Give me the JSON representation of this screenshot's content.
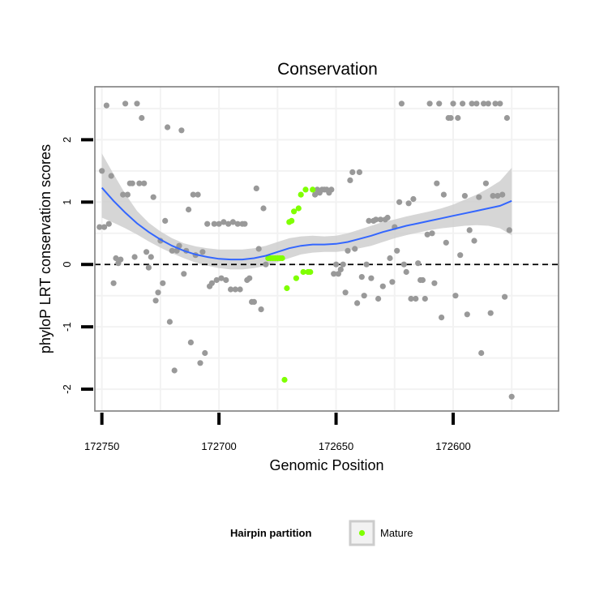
{
  "chart_data": {
    "type": "scatter",
    "title": "Conservation",
    "xlabel": "Genomic Position",
    "ylabel": "phyloP LRT conservation scores",
    "x_reversed": true,
    "xlim": [
      172555,
      172753
    ],
    "ylim": [
      -2.35,
      2.85
    ],
    "x_ticks": [
      172750,
      172700,
      172650,
      172600
    ],
    "y_ticks": [
      2,
      1,
      0,
      -1,
      -2
    ],
    "reference_line": {
      "y": 0,
      "style": "dashed",
      "color": "#000000"
    },
    "colors": {
      "other": "#999999",
      "mature": "#7FFF00",
      "smooth_line": "#3366FF",
      "ribbon": "#CCCCCC",
      "panel_border": "#7F7F7F",
      "grid": "#F2F2F2"
    },
    "legend": {
      "title": "Hairpin partition",
      "entries": [
        {
          "label": "Mature",
          "color": "#7FFF00"
        }
      ]
    },
    "series": [
      {
        "name": "Other",
        "points": [
          [
            172751,
            0.6
          ],
          [
            172750,
            1.5
          ],
          [
            172749,
            0.6
          ],
          [
            172748,
            2.55
          ],
          [
            172747,
            0.65
          ],
          [
            172746,
            1.42
          ],
          [
            172745,
            -0.3
          ],
          [
            172744,
            0.1
          ],
          [
            172743,
            0.02
          ],
          [
            172742,
            0.08
          ],
          [
            172741,
            1.12
          ],
          [
            172740,
            2.58
          ],
          [
            172739,
            1.12
          ],
          [
            172738,
            1.3
          ],
          [
            172737,
            1.3
          ],
          [
            172736,
            0.12
          ],
          [
            172735,
            2.58
          ],
          [
            172734,
            1.3
          ],
          [
            172733,
            2.35
          ],
          [
            172732,
            1.3
          ],
          [
            172731,
            0.2
          ],
          [
            172730,
            -0.05
          ],
          [
            172729,
            0.12
          ],
          [
            172728,
            1.08
          ],
          [
            172727,
            -0.58
          ],
          [
            172726,
            -0.45
          ],
          [
            172725,
            0.38
          ],
          [
            172724,
            -0.3
          ],
          [
            172723,
            0.7
          ],
          [
            172722,
            2.2
          ],
          [
            172721,
            -0.92
          ],
          [
            172720,
            0.22
          ],
          [
            172719,
            -1.7
          ],
          [
            172718,
            0.22
          ],
          [
            172717,
            0.3
          ],
          [
            172716,
            2.15
          ],
          [
            172715,
            -0.15
          ],
          [
            172714,
            0.22
          ],
          [
            172713,
            0.88
          ],
          [
            172712,
            -1.25
          ],
          [
            172711,
            1.12
          ],
          [
            172710,
            0.15
          ],
          [
            172709,
            1.12
          ],
          [
            172708,
            -1.58
          ],
          [
            172707,
            0.2
          ],
          [
            172706,
            -1.42
          ],
          [
            172705,
            0.65
          ],
          [
            172704,
            -0.35
          ],
          [
            172703,
            -0.3
          ],
          [
            172702,
            0.65
          ],
          [
            172701,
            -0.25
          ],
          [
            172700,
            0.65
          ],
          [
            172699,
            -0.22
          ],
          [
            172698,
            0.68
          ],
          [
            172697,
            -0.25
          ],
          [
            172696,
            0.65
          ],
          [
            172695,
            -0.4
          ],
          [
            172694,
            0.68
          ],
          [
            172693,
            -0.4
          ],
          [
            172692,
            0.65
          ],
          [
            172691,
            -0.4
          ],
          [
            172690,
            0.65
          ],
          [
            172689,
            0.65
          ],
          [
            172688,
            -0.25
          ],
          [
            172687,
            -0.22
          ],
          [
            172686,
            -0.6
          ],
          [
            172685,
            -0.6
          ],
          [
            172684,
            1.22
          ],
          [
            172683,
            0.25
          ],
          [
            172682,
            -0.72
          ],
          [
            172681,
            0.9
          ],
          [
            172680,
            0.0
          ],
          [
            172659,
            1.12
          ],
          [
            172658,
            1.2
          ],
          [
            172657,
            1.15
          ],
          [
            172656,
            1.2
          ],
          [
            172655,
            1.2
          ],
          [
            172654,
            1.2
          ],
          [
            172653,
            1.15
          ],
          [
            172652,
            1.2
          ],
          [
            172651,
            -0.15
          ],
          [
            172650,
            0.0
          ],
          [
            172649,
            -0.15
          ],
          [
            172648,
            -0.08
          ],
          [
            172647,
            0.0
          ],
          [
            172646,
            -0.45
          ],
          [
            172645,
            0.22
          ],
          [
            172644,
            1.35
          ],
          [
            172643,
            1.48
          ],
          [
            172642,
            0.25
          ],
          [
            172641,
            -0.62
          ],
          [
            172640,
            1.48
          ],
          [
            172639,
            -0.2
          ],
          [
            172638,
            -0.5
          ],
          [
            172637,
            0.0
          ],
          [
            172636,
            0.7
          ],
          [
            172635,
            -0.22
          ],
          [
            172634,
            0.7
          ],
          [
            172633,
            0.72
          ],
          [
            172632,
            -0.55
          ],
          [
            172631,
            0.72
          ],
          [
            172630,
            -0.35
          ],
          [
            172629,
            0.72
          ],
          [
            172628,
            0.75
          ],
          [
            172627,
            0.1
          ],
          [
            172626,
            -0.28
          ],
          [
            172625,
            0.6
          ],
          [
            172624,
            0.22
          ],
          [
            172623,
            1.0
          ],
          [
            172622,
            2.58
          ],
          [
            172621,
            0.0
          ],
          [
            172620,
            -0.12
          ],
          [
            172619,
            0.98
          ],
          [
            172618,
            -0.55
          ],
          [
            172617,
            1.05
          ],
          [
            172616,
            -0.55
          ],
          [
            172615,
            0.02
          ],
          [
            172614,
            -0.25
          ],
          [
            172613,
            -0.25
          ],
          [
            172612,
            -0.55
          ],
          [
            172611,
            0.48
          ],
          [
            172610,
            2.58
          ],
          [
            172609,
            0.5
          ],
          [
            172608,
            -0.3
          ],
          [
            172607,
            1.3
          ],
          [
            172606,
            2.58
          ],
          [
            172605,
            -0.85
          ],
          [
            172604,
            1.12
          ],
          [
            172603,
            0.35
          ],
          [
            172602,
            2.35
          ],
          [
            172601,
            2.35
          ],
          [
            172600,
            2.58
          ],
          [
            172599,
            -0.5
          ],
          [
            172598,
            2.35
          ],
          [
            172597,
            0.15
          ],
          [
            172596,
            2.58
          ],
          [
            172595,
            1.1
          ],
          [
            172594,
            -0.8
          ],
          [
            172593,
            0.55
          ],
          [
            172592,
            2.58
          ],
          [
            172591,
            0.38
          ],
          [
            172590,
            2.58
          ],
          [
            172589,
            1.08
          ],
          [
            172588,
            -1.42
          ],
          [
            172587,
            2.58
          ],
          [
            172586,
            1.3
          ],
          [
            172585,
            2.58
          ],
          [
            172584,
            -0.78
          ],
          [
            172583,
            1.1
          ],
          [
            172582,
            2.58
          ],
          [
            172581,
            1.1
          ],
          [
            172580,
            2.58
          ],
          [
            172579,
            1.12
          ],
          [
            172578,
            -0.52
          ],
          [
            172577,
            2.35
          ],
          [
            172576,
            0.55
          ],
          [
            172575,
            -2.12
          ]
        ]
      },
      {
        "name": "Mature",
        "points": [
          [
            172679,
            0.1
          ],
          [
            172678,
            0.1
          ],
          [
            172677,
            0.1
          ],
          [
            172676,
            0.1
          ],
          [
            172675,
            0.1
          ],
          [
            172674,
            0.1
          ],
          [
            172673,
            0.1
          ],
          [
            172672,
            -1.85
          ],
          [
            172671,
            -0.38
          ],
          [
            172670,
            0.68
          ],
          [
            172669,
            0.7
          ],
          [
            172668,
            0.85
          ],
          [
            172667,
            -0.22
          ],
          [
            172666,
            0.9
          ],
          [
            172665,
            1.12
          ],
          [
            172664,
            -0.12
          ],
          [
            172663,
            1.2
          ],
          [
            172662,
            -0.12
          ],
          [
            172661,
            -0.12
          ],
          [
            172660,
            1.2
          ]
        ]
      }
    ],
    "smooth": {
      "method": "loess",
      "x": [
        172750,
        172745,
        172740,
        172735,
        172730,
        172725,
        172720,
        172715,
        172710,
        172705,
        172700,
        172695,
        172690,
        172685,
        172680,
        172675,
        172670,
        172665,
        172660,
        172655,
        172650,
        172645,
        172640,
        172635,
        172630,
        172625,
        172620,
        172615,
        172610,
        172605,
        172600,
        172595,
        172590,
        172585,
        172580,
        172575
      ],
      "y": [
        1.23,
        1.02,
        0.83,
        0.66,
        0.52,
        0.4,
        0.3,
        0.22,
        0.16,
        0.12,
        0.09,
        0.08,
        0.08,
        0.1,
        0.14,
        0.2,
        0.26,
        0.3,
        0.32,
        0.32,
        0.33,
        0.36,
        0.41,
        0.46,
        0.52,
        0.57,
        0.62,
        0.66,
        0.7,
        0.74,
        0.78,
        0.82,
        0.86,
        0.9,
        0.94,
        1.02
      ],
      "lower": [
        0.75,
        0.67,
        0.58,
        0.48,
        0.37,
        0.27,
        0.18,
        0.1,
        0.03,
        -0.02,
        -0.06,
        -0.08,
        -0.08,
        -0.06,
        -0.02,
        0.04,
        0.1,
        0.16,
        0.19,
        0.2,
        0.2,
        0.22,
        0.26,
        0.3,
        0.36,
        0.42,
        0.47,
        0.51,
        0.55,
        0.58,
        0.6,
        0.62,
        0.63,
        0.62,
        0.58,
        0.47
      ],
      "upper": [
        1.78,
        1.45,
        1.13,
        0.86,
        0.67,
        0.53,
        0.42,
        0.34,
        0.29,
        0.26,
        0.24,
        0.24,
        0.24,
        0.26,
        0.3,
        0.36,
        0.42,
        0.45,
        0.46,
        0.45,
        0.46,
        0.5,
        0.56,
        0.62,
        0.68,
        0.72,
        0.77,
        0.81,
        0.85,
        0.9,
        0.96,
        1.04,
        1.12,
        1.22,
        1.34,
        1.55
      ]
    }
  }
}
